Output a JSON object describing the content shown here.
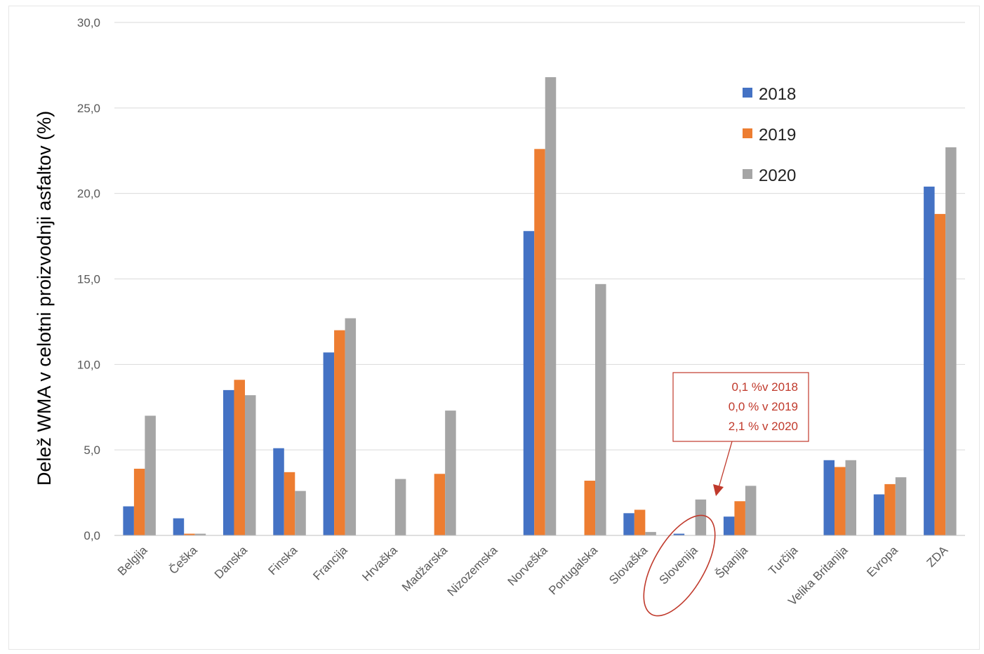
{
  "chart_data": {
    "type": "bar",
    "title": "",
    "ylabel": "Delež WMA v celotni proizvodnji asfaltov (%)",
    "xlabel": "",
    "ylim": [
      0,
      30
    ],
    "y_ticks": [
      "0,0",
      "5,0",
      "10,0",
      "15,0",
      "20,0",
      "25,0",
      "30,0"
    ],
    "grid": true,
    "legend_position": "top-right",
    "categories": [
      "Belgija",
      "Češka",
      "Danska",
      "Finska",
      "Francija",
      "Hrvaška",
      "Madžarska",
      "Nizozemska",
      "Norveška",
      "Portugalska",
      "Slovaška",
      "Slovenija",
      "Španija",
      "Turčija",
      "Velika Britanija",
      "Evropa",
      "ZDA"
    ],
    "series": [
      {
        "name": "2018",
        "color": "#4472c4",
        "values": [
          1.7,
          1.0,
          8.5,
          5.1,
          10.7,
          0,
          0,
          0,
          17.8,
          0,
          1.3,
          0.1,
          1.1,
          0,
          4.4,
          2.4,
          20.4
        ]
      },
      {
        "name": "2019",
        "color": "#ed7d31",
        "values": [
          3.9,
          0.1,
          9.1,
          3.7,
          12.0,
          0,
          3.6,
          0,
          22.6,
          3.2,
          1.5,
          0.0,
          2.0,
          0,
          4.0,
          3.0,
          18.8
        ]
      },
      {
        "name": "2020",
        "color": "#a5a5a5",
        "values": [
          7.0,
          0.1,
          8.2,
          2.6,
          12.7,
          3.3,
          7.3,
          0,
          26.8,
          14.7,
          0.2,
          2.1,
          2.9,
          0,
          4.4,
          3.4,
          22.7
        ]
      }
    ],
    "annotation": {
      "lines": [
        "0,1 %v 2018",
        "0,0 % v 2019",
        "2,1 % v 2020"
      ],
      "target": "Slovenija",
      "color": "#c0392b"
    }
  }
}
